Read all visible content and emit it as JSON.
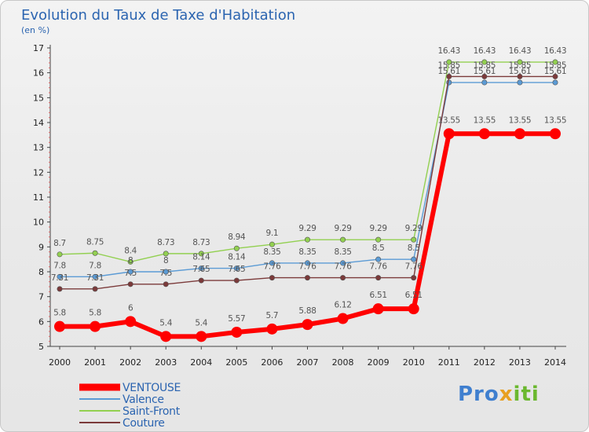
{
  "chart_data": {
    "type": "line",
    "title": "Evolution du Taux de Taxe d'Habitation",
    "subtitle": "(en %)",
    "xlabel": "",
    "ylabel": "",
    "x": [
      "2000",
      "2001",
      "2002",
      "2003",
      "2004",
      "2005",
      "2006",
      "2007",
      "2008",
      "2009",
      "2010",
      "2011",
      "2012",
      "2013",
      "2014"
    ],
    "ylim": [
      5,
      17
    ],
    "yticks": [
      "5",
      "6",
      "7",
      "8",
      "9",
      "10",
      "11",
      "12",
      "13",
      "14",
      "15",
      "16",
      "17"
    ],
    "series": [
      {
        "name": "VENTOUSE",
        "color": "#ff0000",
        "values": [
          5.8,
          5.8,
          6,
          5.4,
          5.4,
          5.57,
          5.7,
          5.88,
          6.12,
          6.51,
          6.51,
          13.55,
          13.55,
          13.55,
          13.55
        ],
        "labels": [
          "5.8",
          "5.8",
          "6",
          "5.4",
          "5.4",
          "5.57",
          "5.7",
          "5.88",
          "6.12",
          "6.51",
          "6.51",
          "13.55",
          "13.55",
          "13.55",
          "13.55"
        ]
      },
      {
        "name": "Valence",
        "color": "#5b9bd5",
        "values": [
          7.8,
          7.8,
          8,
          8,
          8.14,
          8.14,
          8.35,
          8.35,
          8.35,
          8.5,
          8.5,
          15.61,
          15.61,
          15.61,
          15.61
        ],
        "labels": [
          "7.8",
          "7.8",
          "8",
          "8",
          "8.14",
          "8.14",
          "8.35",
          "8.35",
          "8.35",
          "8.5",
          "8.5",
          "15.61",
          "15.61",
          "15.61",
          "15.61"
        ]
      },
      {
        "name": "Saint-Front",
        "color": "#92d050",
        "values": [
          8.7,
          8.75,
          8.4,
          8.73,
          8.73,
          8.94,
          9.1,
          9.29,
          9.29,
          9.29,
          9.29,
          16.43,
          16.43,
          16.43,
          16.43
        ],
        "labels": [
          "8.7",
          "8.75",
          "8.4",
          "8.73",
          "8.73",
          "8.94",
          "9.1",
          "9.29",
          "9.29",
          "9.29",
          "9.29",
          "16.43",
          "16.43",
          "16.43",
          "16.43"
        ]
      },
      {
        "name": "Couture",
        "color": "#7b3a3a",
        "values": [
          7.31,
          7.31,
          7.5,
          7.5,
          7.65,
          7.65,
          7.76,
          7.76,
          7.76,
          7.76,
          7.76,
          15.85,
          15.85,
          15.85,
          15.85
        ],
        "labels": [
          "7.31",
          "7.31",
          "7.5",
          "7.5",
          "7.65",
          "7.65",
          "7.76",
          "7.76",
          "7.76",
          "7.76",
          "7.76",
          "15.85",
          "15.85",
          "15.85",
          "15.85"
        ]
      }
    ],
    "legend": "bottom-left",
    "grid": false
  },
  "brand": {
    "part1": "Pro",
    "part2": "x",
    "part3": "iti"
  }
}
